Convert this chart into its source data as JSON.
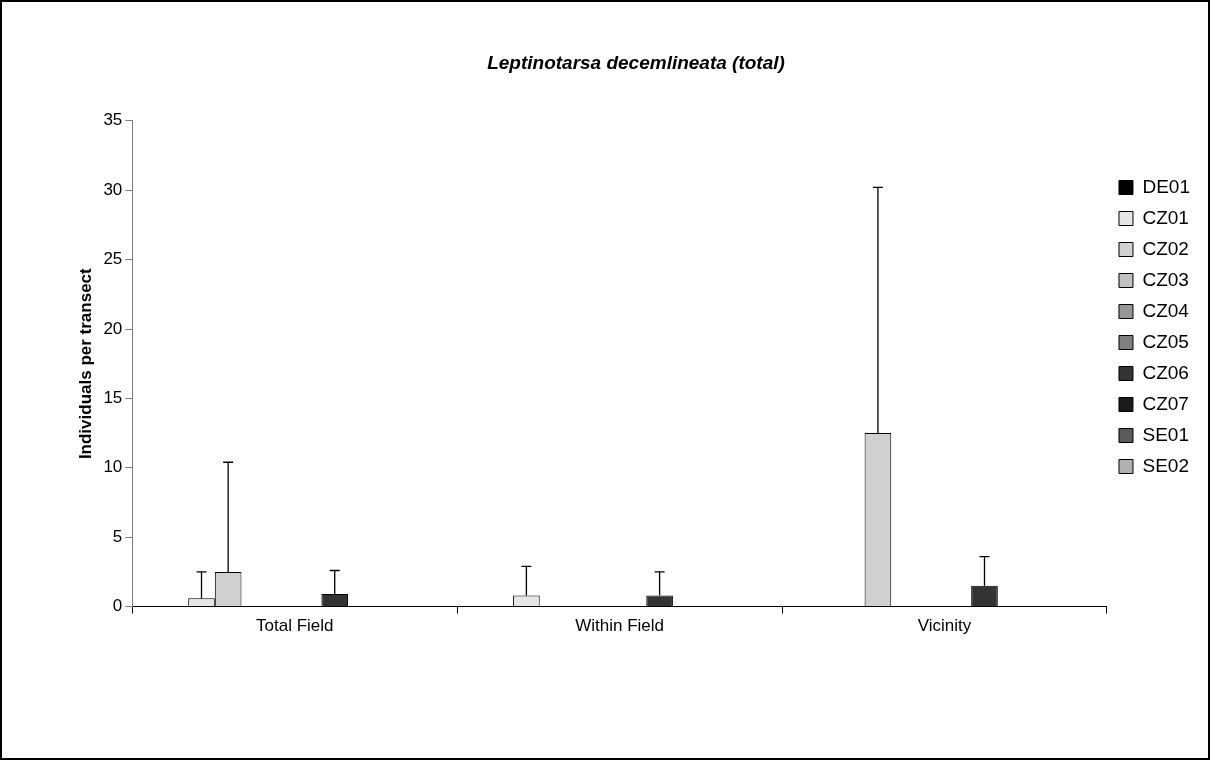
{
  "chart_data": {
    "type": "bar",
    "title": "Leptinotarsa decemlineata (total)",
    "ylabel": "Individuals per transect",
    "categories": [
      "Total Field",
      "Within Field",
      "Vicinity"
    ],
    "ylim": [
      0,
      35
    ],
    "yticks": [
      0,
      5,
      10,
      15,
      20,
      25,
      30,
      35
    ],
    "grid": false,
    "legend": "right",
    "series": [
      {
        "name": "DE01",
        "color": "#000000",
        "values": [
          0,
          0,
          0
        ]
      },
      {
        "name": "CZ01",
        "color": "#e6e6e6",
        "values": [
          0.6,
          0.8,
          0
        ],
        "errors": [
          [
            0.6,
            2.5
          ],
          [
            0.8,
            2.9
          ],
          null
        ]
      },
      {
        "name": "CZ02",
        "color": "#d0d0d0",
        "values": [
          2.5,
          0,
          12.5
        ],
        "errors": [
          [
            2.5,
            10.4
          ],
          null,
          [
            12.5,
            30.2
          ]
        ]
      },
      {
        "name": "CZ03",
        "color": "#c0c0c0",
        "values": [
          0,
          0,
          0
        ]
      },
      {
        "name": "CZ04",
        "color": "#969696",
        "values": [
          0,
          0,
          0
        ]
      },
      {
        "name": "CZ05",
        "color": "#808080",
        "values": [
          0,
          0,
          0
        ]
      },
      {
        "name": "CZ06",
        "color": "#333333",
        "values": [
          0.9,
          0.8,
          1.5
        ],
        "errors": [
          [
            0.9,
            2.6
          ],
          [
            0.8,
            2.5
          ],
          [
            1.5,
            3.6
          ]
        ]
      },
      {
        "name": "CZ07",
        "color": "#1a1a1a",
        "values": [
          0,
          0,
          0
        ]
      },
      {
        "name": "SE01",
        "color": "#5a5a5a",
        "values": [
          0,
          0,
          0
        ]
      },
      {
        "name": "SE02",
        "color": "#b0b0b0",
        "values": [
          0,
          0,
          0
        ]
      }
    ]
  }
}
